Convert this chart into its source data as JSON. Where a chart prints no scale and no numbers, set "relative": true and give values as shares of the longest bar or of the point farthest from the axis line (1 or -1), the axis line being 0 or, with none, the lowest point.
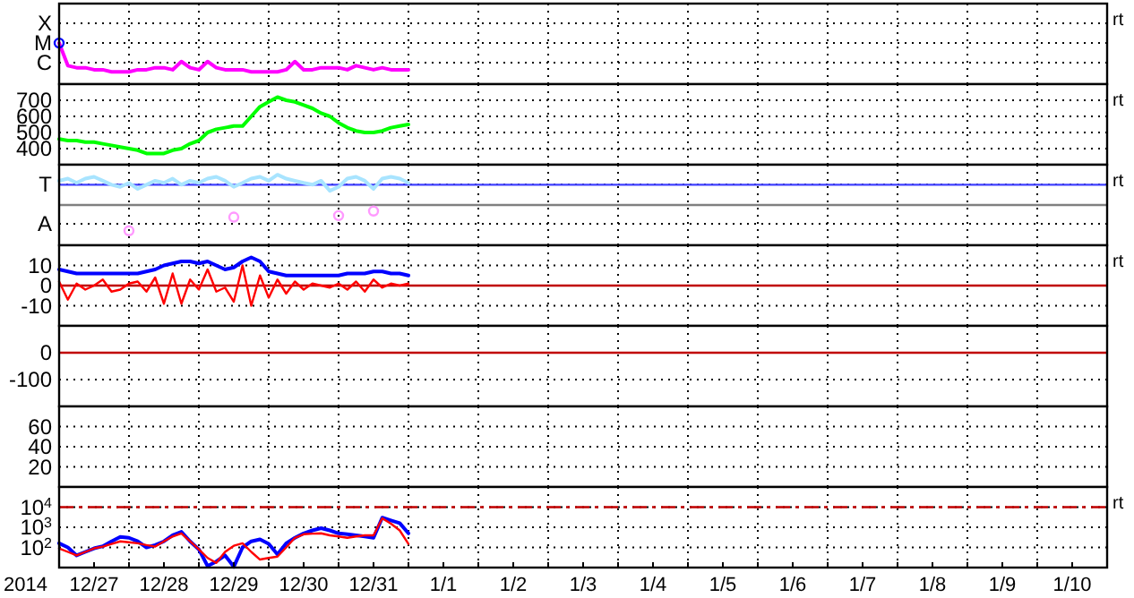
{
  "chart_data": [
    {
      "type": "line",
      "relative": true,
      "grid": true,
      "tick_labels": "y",
      "xlim": [
        "2014-12-27T00:00",
        "2015-01-11T00:00"
      ],
      "xticks": [
        {
          "value": "2014-12-28T00:00",
          "label": null
        },
        {
          "value": "2014-12-29T00:00",
          "label": null
        },
        {
          "value": "2014-12-30T00:00",
          "label": null
        },
        {
          "value": "2014-12-31T00:00",
          "label": null
        },
        {
          "value": "2015-01-01T00:00",
          "label": null
        },
        {
          "value": "2015-01-02T00:00",
          "label": null
        },
        {
          "value": "2015-01-03T00:00",
          "label": null
        },
        {
          "value": "2015-01-04T00:00",
          "label": null
        },
        {
          "value": "2015-01-05T00:00",
          "label": null
        },
        {
          "value": "2015-01-06T00:00",
          "label": null
        },
        {
          "value": "2015-01-07T00:00",
          "label": null
        },
        {
          "value": "2015-01-08T00:00",
          "label": null
        },
        {
          "value": "2015-01-09T00:00",
          "label": null
        },
        {
          "value": "2015-01-10T00:00",
          "label": null
        }
      ],
      "x": [
        "2014-12-27T00:00",
        "2014-12-27T03:00",
        "2014-12-27T06:00",
        "2014-12-27T09:00",
        "2014-12-27T12:00",
        "2014-12-27T15:00",
        "2014-12-27T18:00",
        "2014-12-27T21:00",
        "2014-12-28T00:00",
        "2014-12-28T03:00",
        "2014-12-28T06:00",
        "2014-12-28T09:00",
        "2014-12-28T12:00",
        "2014-12-28T15:00",
        "2014-12-28T18:00",
        "2014-12-28T21:00",
        "2014-12-29T00:00",
        "2014-12-29T03:00",
        "2014-12-29T06:00",
        "2014-12-29T09:00",
        "2014-12-29T12:00",
        "2014-12-29T15:00",
        "2014-12-29T18:00",
        "2014-12-29T21:00",
        "2014-12-30T00:00",
        "2014-12-30T03:00",
        "2014-12-30T06:00",
        "2014-12-30T09:00",
        "2014-12-30T12:00",
        "2014-12-30T15:00",
        "2014-12-30T18:00",
        "2014-12-30T21:00",
        "2014-12-31T00:00",
        "2014-12-31T03:00",
        "2014-12-31T06:00",
        "2014-12-31T09:00",
        "2014-12-31T12:00",
        "2014-12-31T15:00",
        "2014-12-31T18:00",
        "2014-12-31T21:00",
        "2015-01-01T00:00"
      ],
      "series": [
        {
          "color": "#ff00ff",
          "values": [
            1,
            0.45,
            0.4,
            0.4,
            0.35,
            0.35,
            0.3,
            0.3,
            0.3,
            0.35,
            0.35,
            0.4,
            0.4,
            0.35,
            0.55,
            0.4,
            0.35,
            0.55,
            0.4,
            0.35,
            0.35,
            0.35,
            0.3,
            0.3,
            0.3,
            0.3,
            0.35,
            0.55,
            0.35,
            0.35,
            0.4,
            0.4,
            0.4,
            0.35,
            0.45,
            0.4,
            0.35,
            0.4,
            0.35,
            0.35,
            0.35
          ]
        },
        {
          "type": "scatter",
          "color": "#0000ff",
          "x": [
            "2014-12-27T00:00"
          ],
          "values": [
            1
          ]
        }
      ],
      "annotations": [
        "X",
        "M",
        "C",
        "rt"
      ]
    },
    {
      "type": "line",
      "grid": true,
      "tick_labels": "y",
      "xlim": [
        "2014-12-27T00:00",
        "2015-01-11T00:00"
      ],
      "ylim": [
        300,
        800
      ],
      "yticks": [
        400,
        500,
        600,
        700
      ],
      "xticks": [
        {
          "value": "2014-12-28T00:00",
          "label": null
        },
        {
          "value": "2014-12-29T00:00",
          "label": null
        },
        {
          "value": "2014-12-30T00:00",
          "label": null
        },
        {
          "value": "2014-12-31T00:00",
          "label": null
        },
        {
          "value": "2015-01-01T00:00",
          "label": null
        },
        {
          "value": "2015-01-02T00:00",
          "label": null
        },
        {
          "value": "2015-01-03T00:00",
          "label": null
        },
        {
          "value": "2015-01-04T00:00",
          "label": null
        },
        {
          "value": "2015-01-05T00:00",
          "label": null
        },
        {
          "value": "2015-01-06T00:00",
          "label": null
        },
        {
          "value": "2015-01-07T00:00",
          "label": null
        },
        {
          "value": "2015-01-08T00:00",
          "label": null
        },
        {
          "value": "2015-01-09T00:00",
          "label": null
        },
        {
          "value": "2015-01-10T00:00",
          "label": null
        }
      ],
      "x": [
        "2014-12-27T00:00",
        "2014-12-27T03:00",
        "2014-12-27T06:00",
        "2014-12-27T09:00",
        "2014-12-27T12:00",
        "2014-12-27T15:00",
        "2014-12-27T18:00",
        "2014-12-27T21:00",
        "2014-12-28T00:00",
        "2014-12-28T03:00",
        "2014-12-28T06:00",
        "2014-12-28T09:00",
        "2014-12-28T12:00",
        "2014-12-28T15:00",
        "2014-12-28T18:00",
        "2014-12-28T21:00",
        "2014-12-29T00:00",
        "2014-12-29T03:00",
        "2014-12-29T06:00",
        "2014-12-29T09:00",
        "2014-12-29T12:00",
        "2014-12-29T15:00",
        "2014-12-29T18:00",
        "2014-12-29T21:00",
        "2014-12-30T00:00",
        "2014-12-30T03:00",
        "2014-12-30T06:00",
        "2014-12-30T09:00",
        "2014-12-30T12:00",
        "2014-12-30T15:00",
        "2014-12-30T18:00",
        "2014-12-30T21:00",
        "2014-12-31T00:00",
        "2014-12-31T03:00",
        "2014-12-31T06:00",
        "2014-12-31T09:00",
        "2014-12-31T12:00",
        "2014-12-31T15:00",
        "2014-12-31T18:00",
        "2014-12-31T21:00",
        "2015-01-01T00:00"
      ],
      "series": [
        {
          "color": "#00ff00",
          "values": [
            460,
            450,
            450,
            440,
            440,
            430,
            420,
            410,
            400,
            390,
            370,
            370,
            370,
            390,
            400,
            430,
            450,
            500,
            520,
            530,
            540,
            540,
            600,
            660,
            690,
            720,
            700,
            690,
            670,
            650,
            620,
            600,
            560,
            530,
            510,
            500,
            500,
            510,
            530,
            540,
            550
          ]
        }
      ],
      "annotations": [
        "rt"
      ]
    },
    {
      "type": "line",
      "relative": true,
      "grid": true,
      "tick_labels": "y",
      "xlim": [
        "2014-12-27T00:00",
        "2015-01-11T00:00"
      ],
      "xticks": [
        {
          "value": "2014-12-28T00:00",
          "label": null
        },
        {
          "value": "2014-12-29T00:00",
          "label": null
        },
        {
          "value": "2014-12-30T00:00",
          "label": null
        },
        {
          "value": "2014-12-31T00:00",
          "label": null
        },
        {
          "value": "2015-01-01T00:00",
          "label": null
        },
        {
          "value": "2015-01-02T00:00",
          "label": null
        },
        {
          "value": "2015-01-03T00:00",
          "label": null
        },
        {
          "value": "2015-01-04T00:00",
          "label": null
        },
        {
          "value": "2015-01-05T00:00",
          "label": null
        },
        {
          "value": "2015-01-06T00:00",
          "label": null
        },
        {
          "value": "2015-01-07T00:00",
          "label": null
        },
        {
          "value": "2015-01-08T00:00",
          "label": null
        },
        {
          "value": "2015-01-09T00:00",
          "label": null
        },
        {
          "value": "2015-01-10T00:00",
          "label": null
        }
      ],
      "x": [
        "2014-12-27T00:00",
        "2014-12-27T03:00",
        "2014-12-27T06:00",
        "2014-12-27T09:00",
        "2014-12-27T12:00",
        "2014-12-27T15:00",
        "2014-12-27T18:00",
        "2014-12-27T21:00",
        "2014-12-28T00:00",
        "2014-12-28T03:00",
        "2014-12-28T06:00",
        "2014-12-28T09:00",
        "2014-12-28T12:00",
        "2014-12-28T15:00",
        "2014-12-28T18:00",
        "2014-12-28T21:00",
        "2014-12-29T00:00",
        "2014-12-29T03:00",
        "2014-12-29T06:00",
        "2014-12-29T09:00",
        "2014-12-29T12:00",
        "2014-12-29T15:00",
        "2014-12-29T18:00",
        "2014-12-29T21:00",
        "2014-12-30T00:00",
        "2014-12-30T03:00",
        "2014-12-30T06:00",
        "2014-12-30T09:00",
        "2014-12-30T12:00",
        "2014-12-30T15:00",
        "2014-12-30T18:00",
        "2014-12-30T21:00",
        "2014-12-31T00:00",
        "2014-12-31T03:00",
        "2014-12-31T06:00",
        "2014-12-31T09:00",
        "2014-12-31T12:00",
        "2014-12-31T15:00",
        "2014-12-31T18:00",
        "2014-12-31T21:00",
        "2015-01-01T00:00"
      ],
      "series": [
        {
          "color": "#a8e4ff",
          "values": [
            0.8,
            0.87,
            0.73,
            0.87,
            0.93,
            0.8,
            0.67,
            0.6,
            0.73,
            0.53,
            0.67,
            0.8,
            0.73,
            0.87,
            0.67,
            0.8,
            0.73,
            0.87,
            0.93,
            0.8,
            0.6,
            0.73,
            0.87,
            0.93,
            0.8,
            1,
            0.87,
            0.8,
            0.73,
            0.67,
            0.8,
            0.47,
            0.6,
            0.87,
            0.93,
            0.8,
            0.53,
            0.87,
            0.93,
            0.87,
            0.73
          ]
        },
        {
          "type": "scatter",
          "color": "#ff99ff",
          "x": [
            "2014-12-28T00:00",
            "2014-12-29T12:00",
            "2014-12-31T00:00",
            "2014-12-31T12:00"
          ],
          "values": [
            -0.85,
            -0.4,
            -0.35,
            -0.2
          ]
        }
      ],
      "ref_lines": [
        {
          "axis": "y",
          "value": 0.67,
          "color": "#4040ff"
        }
      ],
      "annotations": [
        "T",
        "A",
        "rt"
      ]
    },
    {
      "type": "line",
      "grid": true,
      "tick_labels": "y",
      "xlim": [
        "2014-12-27T00:00",
        "2015-01-11T00:00"
      ],
      "ylim": [
        -20,
        20
      ],
      "yticks": [
        -10,
        0,
        10
      ],
      "xticks": [
        {
          "value": "2014-12-28T00:00",
          "label": null
        },
        {
          "value": "2014-12-29T00:00",
          "label": null
        },
        {
          "value": "2014-12-30T00:00",
          "label": null
        },
        {
          "value": "2014-12-31T00:00",
          "label": null
        },
        {
          "value": "2015-01-01T00:00",
          "label": null
        },
        {
          "value": "2015-01-02T00:00",
          "label": null
        },
        {
          "value": "2015-01-03T00:00",
          "label": null
        },
        {
          "value": "2015-01-04T00:00",
          "label": null
        },
        {
          "value": "2015-01-05T00:00",
          "label": null
        },
        {
          "value": "2015-01-06T00:00",
          "label": null
        },
        {
          "value": "2015-01-07T00:00",
          "label": null
        },
        {
          "value": "2015-01-08T00:00",
          "label": null
        },
        {
          "value": "2015-01-09T00:00",
          "label": null
        },
        {
          "value": "2015-01-10T00:00",
          "label": null
        }
      ],
      "x": [
        "2014-12-27T00:00",
        "2014-12-27T03:00",
        "2014-12-27T06:00",
        "2014-12-27T09:00",
        "2014-12-27T12:00",
        "2014-12-27T15:00",
        "2014-12-27T18:00",
        "2014-12-27T21:00",
        "2014-12-28T00:00",
        "2014-12-28T03:00",
        "2014-12-28T06:00",
        "2014-12-28T09:00",
        "2014-12-28T12:00",
        "2014-12-28T15:00",
        "2014-12-28T18:00",
        "2014-12-28T21:00",
        "2014-12-29T00:00",
        "2014-12-29T03:00",
        "2014-12-29T06:00",
        "2014-12-29T09:00",
        "2014-12-29T12:00",
        "2014-12-29T15:00",
        "2014-12-29T18:00",
        "2014-12-29T21:00",
        "2014-12-30T00:00",
        "2014-12-30T03:00",
        "2014-12-30T06:00",
        "2014-12-30T09:00",
        "2014-12-30T12:00",
        "2014-12-30T15:00",
        "2014-12-30T18:00",
        "2014-12-30T21:00",
        "2014-12-31T00:00",
        "2014-12-31T03:00",
        "2014-12-31T06:00",
        "2014-12-31T09:00",
        "2014-12-31T12:00",
        "2014-12-31T15:00",
        "2014-12-31T18:00",
        "2014-12-31T21:00",
        "2015-01-01T00:00"
      ],
      "series": [
        {
          "color": "#0000ff",
          "values": [
            8,
            7,
            6,
            6,
            6,
            6,
            6,
            6,
            6,
            6,
            7,
            8,
            10,
            11,
            12,
            12,
            11,
            12,
            10,
            8,
            9,
            12,
            14,
            12,
            7,
            6,
            5,
            5,
            5,
            5,
            5,
            5,
            5,
            6,
            6,
            6,
            7,
            7,
            6,
            6,
            5
          ]
        },
        {
          "color": "#ff0000",
          "values": [
            2,
            -7,
            1,
            -2,
            0,
            3,
            -3,
            -2,
            1,
            2,
            -3,
            4,
            -9,
            6,
            -9,
            3,
            -2,
            8,
            -3,
            -1,
            -8,
            10,
            -10,
            5,
            -6,
            3,
            -4,
            2,
            -2,
            1,
            0,
            -1,
            1,
            -2,
            2,
            -3,
            3,
            -1,
            1,
            0,
            1
          ]
        }
      ],
      "ref_lines": [
        {
          "axis": "y",
          "value": 0,
          "color": "#c00000"
        }
      ],
      "annotations": [
        "rt"
      ]
    },
    {
      "type": "line",
      "grid": true,
      "tick_labels": "y",
      "xlim": [
        "2014-12-27T00:00",
        "2015-01-11T00:00"
      ],
      "ylim": [
        -200,
        100
      ],
      "yticks": [
        -100,
        0
      ],
      "xticks": [
        {
          "value": "2014-12-28T00:00",
          "label": null
        },
        {
          "value": "2014-12-29T00:00",
          "label": null
        },
        {
          "value": "2014-12-30T00:00",
          "label": null
        },
        {
          "value": "2014-12-31T00:00",
          "label": null
        },
        {
          "value": "2015-01-01T00:00",
          "label": null
        },
        {
          "value": "2015-01-02T00:00",
          "label": null
        },
        {
          "value": "2015-01-03T00:00",
          "label": null
        },
        {
          "value": "2015-01-04T00:00",
          "label": null
        },
        {
          "value": "2015-01-05T00:00",
          "label": null
        },
        {
          "value": "2015-01-06T00:00",
          "label": null
        },
        {
          "value": "2015-01-07T00:00",
          "label": null
        },
        {
          "value": "2015-01-08T00:00",
          "label": null
        },
        {
          "value": "2015-01-09T00:00",
          "label": null
        },
        {
          "value": "2015-01-10T00:00",
          "label": null
        }
      ],
      "ref_lines": [
        {
          "axis": "y",
          "value": 0,
          "color": "#c00000"
        }
      ]
    },
    {
      "type": "line",
      "grid": true,
      "tick_labels": "y",
      "xlim": [
        "2014-12-27T00:00",
        "2015-01-11T00:00"
      ],
      "ylim": [
        0,
        80
      ],
      "yticks": [
        20,
        40,
        60
      ],
      "xticks": [
        {
          "value": "2014-12-28T00:00",
          "label": null
        },
        {
          "value": "2014-12-29T00:00",
          "label": null
        },
        {
          "value": "2014-12-30T00:00",
          "label": null
        },
        {
          "value": "2014-12-31T00:00",
          "label": null
        },
        {
          "value": "2015-01-01T00:00",
          "label": null
        },
        {
          "value": "2015-01-02T00:00",
          "label": null
        },
        {
          "value": "2015-01-03T00:00",
          "label": null
        },
        {
          "value": "2015-01-04T00:00",
          "label": null
        },
        {
          "value": "2015-01-05T00:00",
          "label": null
        },
        {
          "value": "2015-01-06T00:00",
          "label": null
        },
        {
          "value": "2015-01-07T00:00",
          "label": null
        },
        {
          "value": "2015-01-08T00:00",
          "label": null
        },
        {
          "value": "2015-01-09T00:00",
          "label": null
        },
        {
          "value": "2015-01-10T00:00",
          "label": null
        }
      ]
    },
    {
      "type": "line",
      "log": true,
      "grid": true,
      "xlabel": "2014",
      "xlim": [
        "2014-12-27T00:00",
        "2015-01-11T00:00"
      ],
      "ylim": [
        10,
        100000
      ],
      "yticks": [
        {
          "value": 100,
          "label": "10$^{2}$"
        },
        {
          "value": 1000,
          "label": "10$^{3}$"
        },
        {
          "value": 10000,
          "label": "10$^{4}$"
        }
      ],
      "xticks": [
        {
          "value": "2014-12-28T00:00",
          "label": null
        },
        {
          "value": "2014-12-29T00:00",
          "label": null
        },
        {
          "value": "2014-12-30T00:00",
          "label": null
        },
        {
          "value": "2014-12-31T00:00",
          "label": null
        },
        {
          "value": "2015-01-01T00:00",
          "label": null
        },
        {
          "value": "2015-01-02T00:00",
          "label": null
        },
        {
          "value": "2015-01-03T00:00",
          "label": null
        },
        {
          "value": "2015-01-04T00:00",
          "label": null
        },
        {
          "value": "2015-01-05T00:00",
          "label": null
        },
        {
          "value": "2015-01-06T00:00",
          "label": null
        },
        {
          "value": "2015-01-07T00:00",
          "label": null
        },
        {
          "value": "2015-01-08T00:00",
          "label": null
        },
        {
          "value": "2015-01-09T00:00",
          "label": null
        },
        {
          "value": "2015-01-10T00:00",
          "label": null
        },
        {
          "value": "2014-12-27T12:00",
          "label": "12/27"
        },
        {
          "value": "2014-12-28T12:00",
          "label": "12/28"
        },
        {
          "value": "2014-12-29T12:00",
          "label": "12/29"
        },
        {
          "value": "2014-12-30T12:00",
          "label": "12/30"
        },
        {
          "value": "2014-12-31T12:00",
          "label": "12/31"
        },
        {
          "value": "2015-01-01T12:00",
          "label": "1/1"
        },
        {
          "value": "2015-01-02T12:00",
          "label": "1/2"
        },
        {
          "value": "2015-01-03T12:00",
          "label": "1/3"
        },
        {
          "value": "2015-01-04T12:00",
          "label": "1/4"
        },
        {
          "value": "2015-01-05T12:00",
          "label": "1/5"
        },
        {
          "value": "2015-01-06T12:00",
          "label": "1/6"
        },
        {
          "value": "2015-01-07T12:00",
          "label": "1/7"
        },
        {
          "value": "2015-01-08T12:00",
          "label": "1/8"
        },
        {
          "value": "2015-01-09T12:00",
          "label": "1/9"
        },
        {
          "value": "2015-01-10T12:00",
          "label": "1/10"
        }
      ],
      "x": [
        "2014-12-27T00:00",
        "2014-12-27T03:00",
        "2014-12-27T06:00",
        "2014-12-27T09:00",
        "2014-12-27T12:00",
        "2014-12-27T15:00",
        "2014-12-27T18:00",
        "2014-12-27T21:00",
        "2014-12-28T00:00",
        "2014-12-28T03:00",
        "2014-12-28T06:00",
        "2014-12-28T09:00",
        "2014-12-28T12:00",
        "2014-12-28T15:00",
        "2014-12-28T18:00",
        "2014-12-28T21:00",
        "2014-12-29T00:00",
        "2014-12-29T03:00",
        "2014-12-29T06:00",
        "2014-12-29T09:00",
        "2014-12-29T12:00",
        "2014-12-29T15:00",
        "2014-12-29T18:00",
        "2014-12-29T21:00",
        "2014-12-30T00:00",
        "2014-12-30T03:00",
        "2014-12-30T06:00",
        "2014-12-30T09:00",
        "2014-12-30T12:00",
        "2014-12-30T15:00",
        "2014-12-30T18:00",
        "2014-12-30T21:00",
        "2014-12-31T00:00",
        "2014-12-31T03:00",
        "2014-12-31T06:00",
        "2014-12-31T09:00",
        "2014-12-31T12:00",
        "2014-12-31T15:00",
        "2014-12-31T18:00",
        "2014-12-31T21:00",
        "2015-01-01T00:00"
      ],
      "series": [
        {
          "color": "#0000ff",
          "values": [
            160,
            100,
            40,
            60,
            90,
            115,
            200,
            330,
            300,
            200,
            100,
            130,
            200,
            400,
            600,
            200,
            80,
            12,
            20,
            40,
            11,
            100,
            200,
            250,
            150,
            45,
            160,
            300,
            500,
            700,
            900,
            700,
            500,
            450,
            400,
            350,
            300,
            3000,
            2200,
            1600,
            500
          ]
        },
        {
          "color": "#ff0000",
          "values": [
            90,
            60,
            40,
            60,
            90,
            110,
            150,
            200,
            180,
            160,
            130,
            110,
            200,
            350,
            500,
            200,
            80,
            30,
            17,
            60,
            120,
            160,
            60,
            25,
            30,
            35,
            100,
            300,
            450,
            480,
            500,
            400,
            350,
            300,
            350,
            400,
            400,
            2800,
            1500,
            700,
            150
          ]
        }
      ],
      "ref_lines": [
        {
          "axis": "y",
          "value": 10000,
          "color": "#c00000",
          "line_style": "dashed"
        }
      ],
      "annotations": [
        "rt"
      ]
    }
  ]
}
